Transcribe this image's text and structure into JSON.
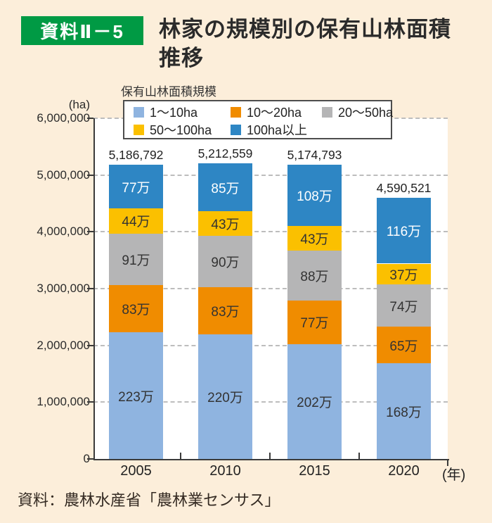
{
  "header": {
    "tag": "資料Ⅱ－5",
    "title_line1": "林家の規模別の保有山林面積",
    "title_line2": "推移"
  },
  "legend": {
    "title": "保有山林面積規模"
  },
  "axis": {
    "unit_y": "(ha)",
    "unit_x": "(年)",
    "y_tick_labels": [
      "0",
      "1,000,000",
      "2,000,000",
      "3,000,000",
      "4,000,000",
      "5,000,000",
      "6,000,000"
    ]
  },
  "source": "資料：農林水産省「農林業センサス」",
  "chart_data": {
    "type": "bar",
    "stacked": true,
    "title": "林家の規模別の保有山林面積推移",
    "categories": [
      "2005",
      "2010",
      "2015",
      "2020"
    ],
    "totals": [
      "5,186,792",
      "5,212,559",
      "5,174,793",
      "4,590,521"
    ],
    "value_unit": "万ha",
    "segment_label_suffix": "万",
    "ylabel": "(ha)",
    "xlabel": "(年)",
    "ylim": [
      0,
      6000000
    ],
    "grid": "dashed horizontal",
    "legend_position": "top",
    "series": [
      {
        "name": "1〜10ha",
        "color": "#8FB4E0",
        "label_color": "#333333",
        "values": [
          223,
          220,
          202,
          168
        ]
      },
      {
        "name": "10〜20ha",
        "color": "#F08C00",
        "label_color": "#333333",
        "values": [
          83,
          83,
          77,
          65
        ]
      },
      {
        "name": "20〜50ha",
        "color": "#B5B5B6",
        "label_color": "#333333",
        "values": [
          91,
          90,
          88,
          74
        ]
      },
      {
        "name": "50〜100ha",
        "color": "#FBC000",
        "label_color": "#333333",
        "values": [
          44,
          43,
          43,
          37
        ]
      },
      {
        "name": "100ha以上",
        "color": "#2E86C4",
        "label_color": "#ffffff",
        "values": [
          77,
          85,
          108,
          116
        ]
      }
    ]
  }
}
